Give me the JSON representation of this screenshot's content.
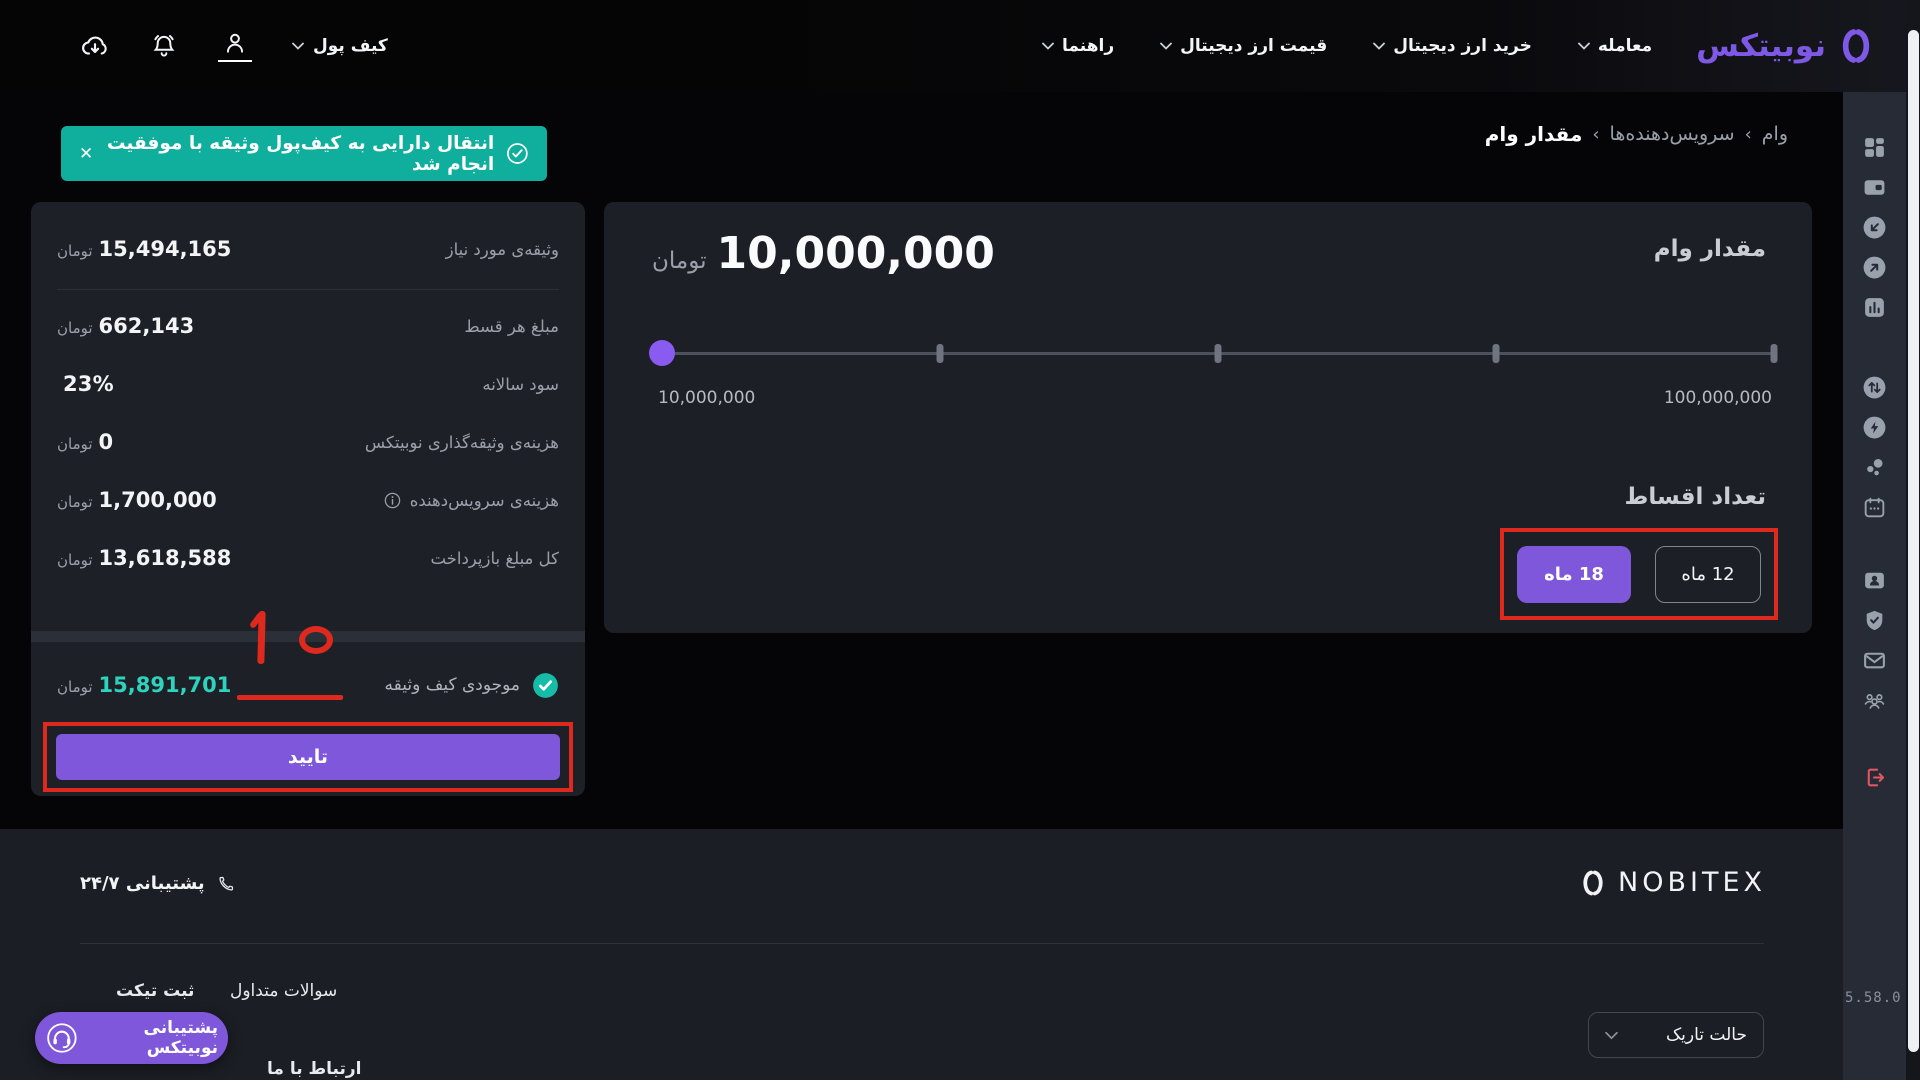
{
  "colors": {
    "accent_purple": "#7e57da",
    "logo_purple": "#7e59e6",
    "toast_teal": "#10ae9c",
    "value_teal": "#2ed3be",
    "annotation_red": "#de2a1e",
    "panel_bg": "#1c1f25",
    "card_bg": "#1d2127",
    "footer_bg": "#1b1e24",
    "rail_bg": "#262b36"
  },
  "navbar": {
    "brand": "نوبیتکس",
    "menu": [
      "معامله",
      "خرید ارز دیجیتال",
      "قیمت ارز دیجیتال",
      "راهنما"
    ],
    "wallet_menu": "کیف پول"
  },
  "breadcrumb": {
    "items": [
      "وام",
      "سرویس‌دهنده‌ها",
      "مقدار وام"
    ],
    "separator": "‹"
  },
  "toast": {
    "message": "انتقال دارایی به کیف‌پول وثیقه با موفقیت انجام شد",
    "close_icon": "✕"
  },
  "loan_summary": {
    "rows": [
      {
        "label": "وثیقه‌ی مورد نیاز",
        "value": "15,494,165",
        "unit": "تومان"
      },
      {
        "label": "مبلغ هر قسط",
        "value": "662,143",
        "unit": "تومان"
      },
      {
        "label": "سود سالانه",
        "value": "23%",
        "unit": ""
      },
      {
        "label": "هزینه‌ی وثیقه‌گذاری نوبیتکس",
        "value": "0",
        "unit": "تومان"
      },
      {
        "label": "هزینه‌ی سرویس‌دهنده",
        "value": "1,700,000",
        "unit": "تومان"
      },
      {
        "label": "کل مبلغ بازپرداخت",
        "value": "13,618,588",
        "unit": "تومان"
      }
    ],
    "wallet_balance": {
      "label": "موجودی کیف وثیقه",
      "value": "15,891,701",
      "unit": "تومان"
    },
    "confirm_label": "تایید"
  },
  "loan_panel": {
    "title": "مقدار وام",
    "amount": "10,000,000",
    "unit": "تومان",
    "slider": {
      "min_label": "10,000,000",
      "max_label": "100,000,000",
      "value_percent": 0,
      "tick_percents": [
        25,
        50,
        75,
        100
      ]
    },
    "installments": {
      "title": "تعداد اقساط",
      "options": [
        {
          "label": "12 ماه",
          "selected": false
        },
        {
          "label": "18 ماه",
          "selected": true
        }
      ]
    }
  },
  "annotation": {
    "step_number": "۱۰"
  },
  "sidebar": {
    "icons": [
      "dashboard",
      "wallet-card",
      "deposit",
      "withdraw",
      "market-chart",
      "convert",
      "instant-trade",
      "bubbles",
      "calendar",
      "profile-card",
      "security-shield",
      "messages",
      "referral",
      "logout"
    ]
  },
  "footer": {
    "brand": "NOBITEX",
    "support": "پشتیبانی ۲۴/۷",
    "links": {
      "faq": "سوالات متداول",
      "ticket": "ثبت تیکت",
      "contact": "ارتباط با ما"
    },
    "theme_select": "حالت تاریک",
    "chat_button": "پشتیبانی نوبیتکس",
    "version": "5.58.0"
  }
}
